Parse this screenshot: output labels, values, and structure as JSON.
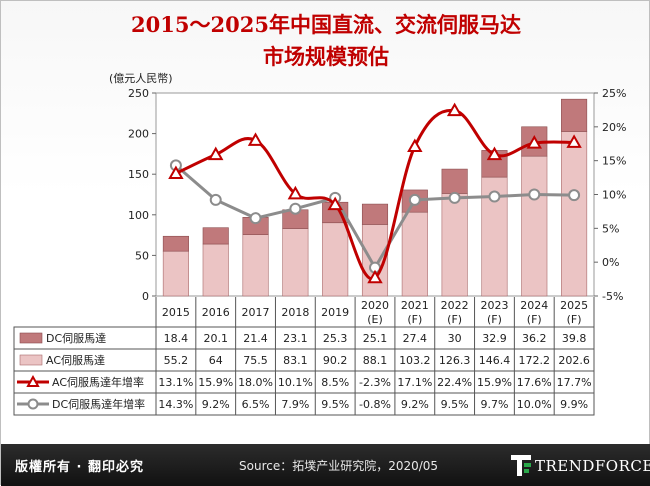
{
  "title_line1": "2015～2025年中国直流、交流伺服马达",
  "title_line2": "市场规模预估",
  "footer": {
    "rights": "版權所有 · 翻印必究",
    "source": "Source：拓墣产业研究院，2020/05",
    "logo": "TRENDFORCE"
  },
  "colors": {
    "dc_bar": "#c0797b",
    "ac_bar": "#ebc4c4",
    "ac_line": "#c00000",
    "dc_line": "#8c8c8c"
  },
  "chart_data": {
    "type": "bar",
    "title": "2015～2025年中国直流、交流伺服马达市场规模预估",
    "ylabel": "(億元人民幣)",
    "ylim": [
      0,
      250
    ],
    "y_ticks": [
      0,
      50,
      100,
      150,
      200,
      250
    ],
    "y2lim": [
      -5,
      25
    ],
    "y2_ticks": [
      "-5%",
      "0%",
      "5%",
      "10%",
      "15%",
      "20%",
      "25%"
    ],
    "categories": [
      [
        "2015"
      ],
      [
        "2016"
      ],
      [
        "2017"
      ],
      [
        "2018"
      ],
      [
        "2019"
      ],
      [
        "2020",
        "(E)"
      ],
      [
        "2021",
        "(F)"
      ],
      [
        "2022",
        "(F)"
      ],
      [
        "2023",
        "(F)"
      ],
      [
        "2024",
        "(F)"
      ],
      [
        "2025",
        "(F)"
      ]
    ],
    "stacked": true,
    "series": [
      {
        "name": "DC伺服馬達",
        "kind": "bar",
        "values": [
          18.4,
          20.1,
          21.4,
          23.1,
          25.3,
          25.1,
          27.4,
          30,
          32.9,
          36.2,
          39.8
        ],
        "labels": [
          "18.4",
          "20.1",
          "21.4",
          "23.1",
          "25.3",
          "25.1",
          "27.4",
          "30",
          "32.9",
          "36.2",
          "39.8"
        ]
      },
      {
        "name": "AC伺服馬達",
        "kind": "bar",
        "values": [
          55.2,
          64,
          75.5,
          83.1,
          90.2,
          88.1,
          103.2,
          126.3,
          146.4,
          172.2,
          202.6
        ],
        "labels": [
          "55.2",
          "64",
          "75.5",
          "83.1",
          "90.2",
          "88.1",
          "103.2",
          "126.3",
          "146.4",
          "172.2",
          "202.6"
        ]
      },
      {
        "name": "AC伺服馬達年增率",
        "kind": "line",
        "axis": "secondary",
        "values": [
          13.1,
          15.9,
          18.0,
          10.1,
          8.5,
          -2.3,
          17.1,
          22.4,
          15.9,
          17.6,
          17.7
        ],
        "labels": [
          "13.1%",
          "15.9%",
          "18.0%",
          "10.1%",
          "8.5%",
          "-2.3%",
          "17.1%",
          "22.4%",
          "15.9%",
          "17.6%",
          "17.7%"
        ]
      },
      {
        "name": "DC伺服馬達年增率",
        "kind": "line",
        "axis": "secondary",
        "values": [
          14.3,
          9.2,
          6.5,
          7.9,
          9.5,
          -0.8,
          9.2,
          9.5,
          9.7,
          10.0,
          9.9
        ],
        "labels": [
          "14.3%",
          "9.2%",
          "6.5%",
          "7.9%",
          "9.5%",
          "-0.8%",
          "9.2%",
          "9.5%",
          "9.7%",
          "10.0%",
          "9.9%"
        ]
      }
    ]
  }
}
